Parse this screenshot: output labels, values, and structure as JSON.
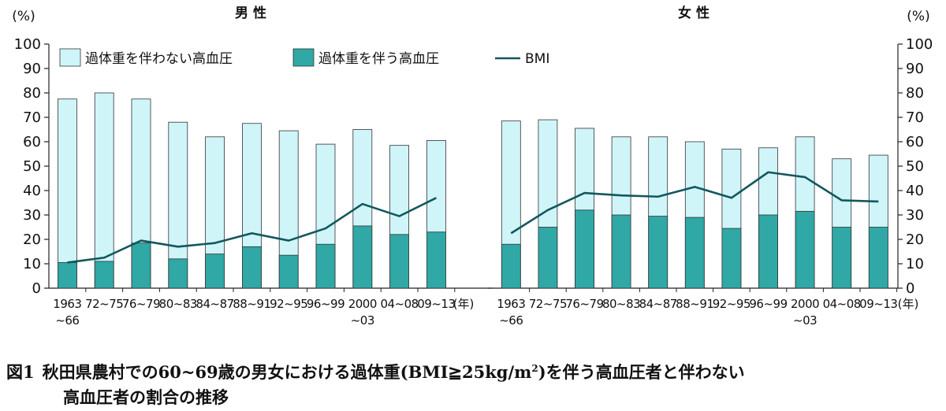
{
  "chart_data": [
    {
      "panel": "男 性",
      "type": "bar+line",
      "categories": [
        "1963\n~66",
        "72~75",
        "76~79",
        "80~83",
        "84~87",
        "88~91",
        "92~95",
        "96~99",
        "2000\n~03",
        "04~08",
        "09~13"
      ],
      "series": [
        {
          "name": "過体重を伴わない高血圧",
          "type": "bar",
          "values": [
            77.5,
            80,
            77.5,
            68,
            62,
            67.5,
            64.5,
            59,
            65,
            58.5,
            60.5
          ]
        },
        {
          "name": "過体重を伴う高血圧",
          "type": "bar",
          "values": [
            10.5,
            11,
            18.5,
            12,
            14,
            17,
            13.5,
            18,
            25.5,
            22,
            23
          ]
        },
        {
          "name": "BMI",
          "type": "line",
          "values": [
            10.5,
            12.5,
            19.5,
            17,
            18.5,
            22.5,
            19.5,
            24.5,
            34.5,
            29.5,
            37
          ]
        }
      ],
      "ylim": [
        0,
        100
      ],
      "yticks": [
        0,
        10,
        20,
        30,
        40,
        50,
        60,
        70,
        80,
        90,
        100
      ],
      "ylabel": "(%)",
      "xunit": "(年)"
    },
    {
      "panel": "女 性",
      "type": "bar+line",
      "categories": [
        "1963\n~66",
        "72~75",
        "76~79",
        "80~83",
        "84~87",
        "88~91",
        "92~95",
        "96~99",
        "2000\n~03",
        "04~08",
        "09~13"
      ],
      "series": [
        {
          "name": "過体重を伴わない高血圧",
          "type": "bar",
          "values": [
            68.5,
            69,
            65.5,
            62,
            62,
            60,
            57,
            57.5,
            62,
            53,
            54.5
          ]
        },
        {
          "name": "過体重を伴う高血圧",
          "type": "bar",
          "values": [
            18,
            25,
            32,
            30,
            29.5,
            29,
            24.5,
            30,
            31.5,
            25,
            25
          ]
        },
        {
          "name": "BMI",
          "type": "line",
          "values": [
            22.5,
            32,
            39,
            38,
            37.5,
            41.5,
            37,
            47.5,
            45.5,
            36,
            35.5
          ]
        }
      ],
      "ylim": [
        0,
        100
      ],
      "yticks": [
        0,
        10,
        20,
        30,
        40,
        50,
        60,
        70,
        80,
        90,
        100
      ],
      "ylabel": "(%)",
      "xunit": "(年)"
    }
  ],
  "legend": {
    "items": [
      {
        "label": "過体重を伴わない高血圧",
        "kind": "light-bar"
      },
      {
        "label": "過体重を伴う高血圧",
        "kind": "dark-bar"
      },
      {
        "label": "BMI",
        "kind": "line"
      }
    ],
    "position": "top-left"
  },
  "colors": {
    "light_bar": "#cff5f9",
    "dark_bar": "#2fa8a6",
    "line": "#13575e",
    "axis": "#222222"
  },
  "caption": {
    "fig_no": "図1",
    "line1_text": "秋田県農村での60~69歳の男女における過体重(BMI≧25kg/m",
    "line1_sup": "2",
    "line1_end": ")を伴う高血圧者と伴わない",
    "line2": "高血圧者の割合の推移"
  }
}
